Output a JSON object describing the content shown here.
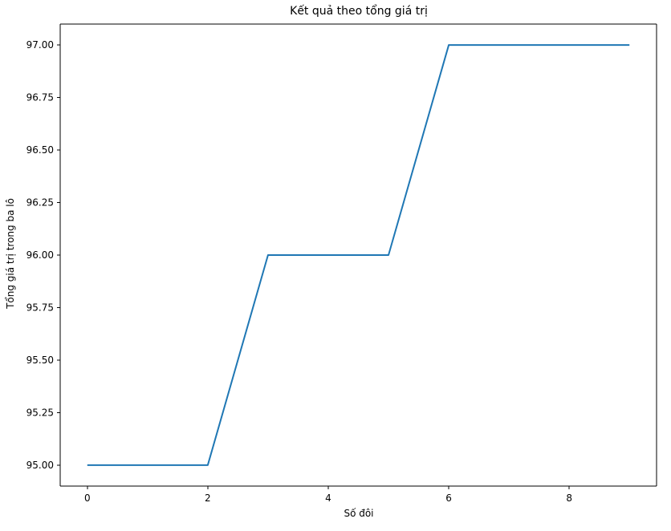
{
  "chart_data": {
    "type": "line",
    "title": "Kết quả theo tổng giá trị",
    "xlabel": "Số đôi",
    "ylabel": "Tổng giá trị trong ba lô",
    "x": [
      0,
      1,
      2,
      3,
      4,
      5,
      6,
      7,
      8,
      9
    ],
    "series": [
      {
        "values": [
          95,
          95,
          95,
          96,
          96,
          96,
          97,
          97,
          97,
          97
        ],
        "color": "#1f77b4"
      }
    ],
    "xlim": [
      -0.45,
      9.45
    ],
    "ylim": [
      94.9,
      97.1
    ],
    "x_ticks": [
      {
        "value": 0,
        "label": "0"
      },
      {
        "value": 2,
        "label": "2"
      },
      {
        "value": 4,
        "label": "4"
      },
      {
        "value": 6,
        "label": "6"
      },
      {
        "value": 8,
        "label": "8"
      }
    ],
    "y_ticks": [
      {
        "value": 95.0,
        "label": "95.00"
      },
      {
        "value": 95.25,
        "label": "95.25"
      },
      {
        "value": 95.5,
        "label": "95.50"
      },
      {
        "value": 95.75,
        "label": "95.75"
      },
      {
        "value": 96.0,
        "label": "96.00"
      },
      {
        "value": 96.25,
        "label": "96.25"
      },
      {
        "value": 96.5,
        "label": "96.50"
      },
      {
        "value": 96.75,
        "label": "96.75"
      },
      {
        "value": 97.0,
        "label": "97.00"
      }
    ],
    "grid": false,
    "legend": "none"
  }
}
